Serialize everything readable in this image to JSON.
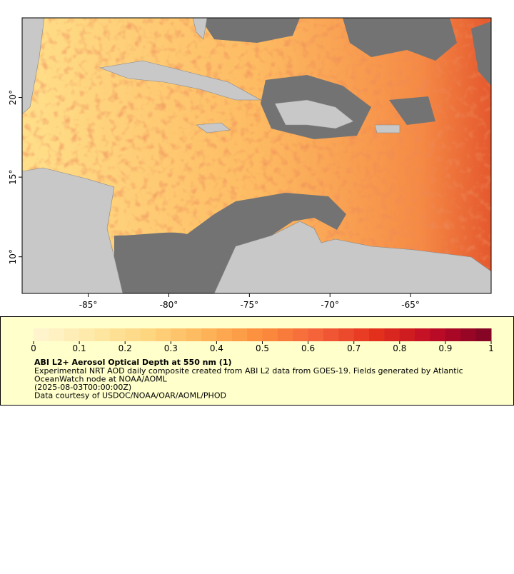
{
  "map": {
    "xlim": [
      -89.1,
      -60
    ],
    "ylim": [
      7.7,
      25
    ],
    "xticks": [
      {
        "value": -85,
        "label": "-85°"
      },
      {
        "value": -80,
        "label": "-80°"
      },
      {
        "value": -75,
        "label": "-75°"
      },
      {
        "value": -70,
        "label": "-70°"
      },
      {
        "value": -65,
        "label": "-65°"
      }
    ],
    "yticks": [
      {
        "value": 10,
        "label": "10°"
      },
      {
        "value": 15,
        "label": "15°"
      },
      {
        "value": 20,
        "label": "20°"
      }
    ]
  },
  "colorbar": {
    "lim": [
      0,
      1
    ],
    "ticks": [
      0,
      0.1,
      0.2,
      0.3,
      0.4,
      0.5,
      0.6,
      0.7,
      0.8,
      0.9,
      1
    ],
    "steps": 30,
    "colors": [
      "#fff6d2",
      "#fee9a8",
      "#fed680",
      "#fdb55a",
      "#fc8d3c",
      "#f4603a",
      "#e3301c",
      "#bd0a26",
      "#7d0425"
    ]
  },
  "legend": {
    "title": "ABI L2+ Aerosol Optical Depth at 550 nm (1)",
    "lines": [
      "Experimental NRT AOD daily composite created from ABI L2 data from GOES-19. Fields generated by Atlantic",
      "OceanWatch node at NOAA/AOML",
      "(2025-08-03T00:00:00Z)",
      "Data courtesy of USDOC/NOAA/OAR/AOML/PHOD"
    ]
  }
}
